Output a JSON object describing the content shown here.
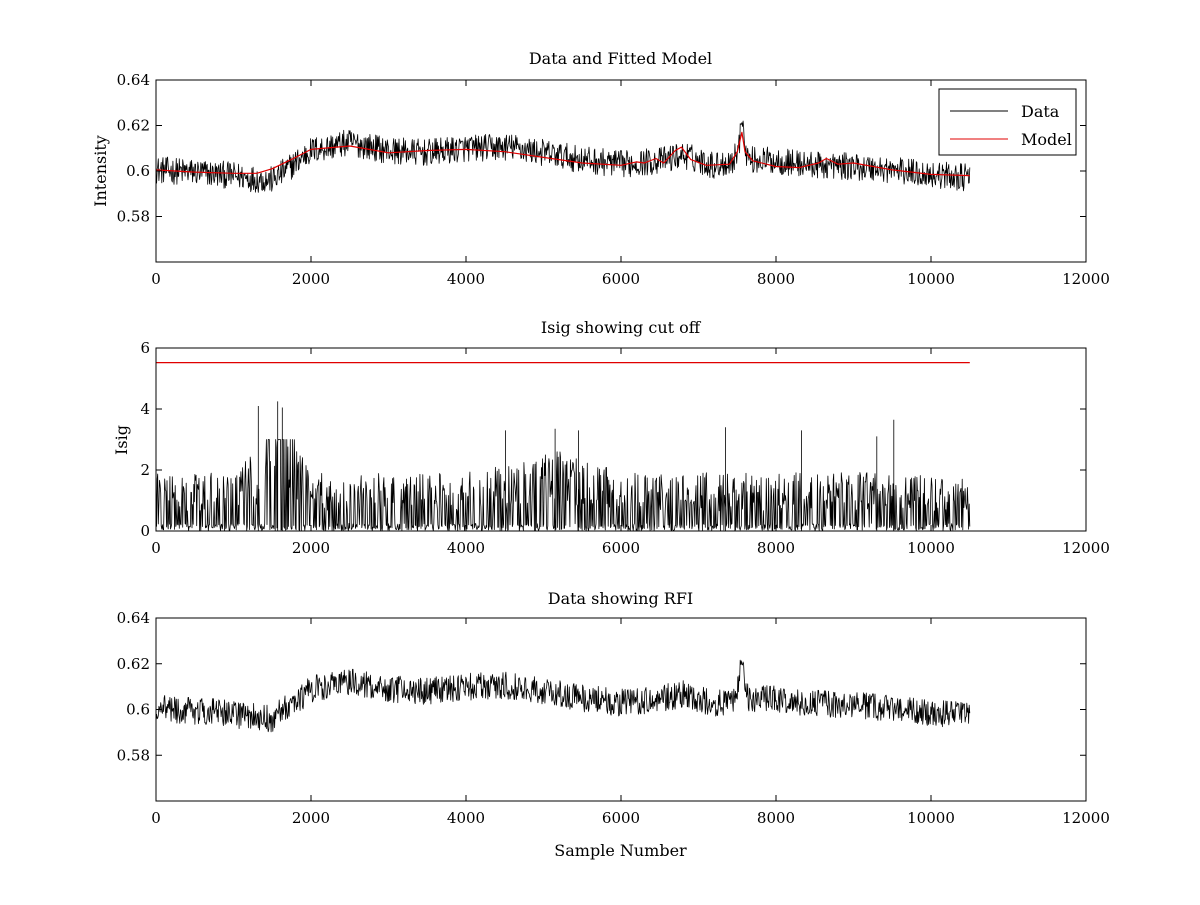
{
  "colors": {
    "data": "#000000",
    "model": "#e00000",
    "background": "#ffffff"
  },
  "chart_data": [
    {
      "type": "line",
      "title": "Data and Fitted Model",
      "xlabel": "",
      "ylabel": "Intensity",
      "xlim": [
        0,
        12000
      ],
      "ylim": [
        0.56,
        0.64
      ],
      "xticks": [
        0,
        2000,
        4000,
        6000,
        8000,
        10000,
        12000
      ],
      "xtick_labels": [
        "0",
        "2000",
        "4000",
        "6000",
        "8000",
        "10000",
        "12000"
      ],
      "yticks": [
        0.58,
        0.6,
        0.62,
        0.64
      ],
      "ytick_labels": [
        "0.58",
        "0.6",
        "0.62",
        "0.64"
      ],
      "grid": false,
      "legend": {
        "position": "top-right",
        "entries": [
          "Data",
          "Model"
        ]
      },
      "series": [
        {
          "name": "Data",
          "color": "#000000",
          "style": "noisy",
          "noise_halfwidth": 0.006,
          "points": [
            [
              0,
              0.6005
            ],
            [
              500,
              0.5995
            ],
            [
              1000,
              0.598
            ],
            [
              1300,
              0.5965
            ],
            [
              1500,
              0.596
            ],
            [
              1700,
              0.601
            ],
            [
              2000,
              0.609
            ],
            [
              2500,
              0.6125
            ],
            [
              3000,
              0.609
            ],
            [
              3500,
              0.608
            ],
            [
              4000,
              0.61
            ],
            [
              4600,
              0.6105
            ],
            [
              5000,
              0.608
            ],
            [
              5500,
              0.605
            ],
            [
              6000,
              0.603
            ],
            [
              6500,
              0.6045
            ],
            [
              6800,
              0.607
            ],
            [
              7200,
              0.6025
            ],
            [
              7450,
              0.6045
            ],
            [
              7560,
              0.6145
            ],
            [
              7650,
              0.605
            ],
            [
              8000,
              0.6045
            ],
            [
              8500,
              0.6025
            ],
            [
              9000,
              0.602
            ],
            [
              9500,
              0.6005
            ],
            [
              10000,
              0.5985
            ],
            [
              10500,
              0.597
            ]
          ],
          "peak": {
            "x": 7560,
            "y": 0.622
          }
        },
        {
          "name": "Model",
          "color": "#e00000",
          "style": "line",
          "points": [
            [
              0,
              0.6005
            ],
            [
              500,
              0.5995
            ],
            [
              1000,
              0.599
            ],
            [
              1300,
              0.599
            ],
            [
              1500,
              0.601
            ],
            [
              1800,
              0.606
            ],
            [
              2000,
              0.6095
            ],
            [
              2500,
              0.611
            ],
            [
              3000,
              0.608
            ],
            [
              3500,
              0.609
            ],
            [
              4000,
              0.6095
            ],
            [
              4500,
              0.6085
            ],
            [
              5000,
              0.606
            ],
            [
              5500,
              0.6035
            ],
            [
              6000,
              0.6025
            ],
            [
              6200,
              0.604
            ],
            [
              6300,
              0.6035
            ],
            [
              6450,
              0.6055
            ],
            [
              6550,
              0.6035
            ],
            [
              6700,
              0.609
            ],
            [
              6780,
              0.6105
            ],
            [
              6900,
              0.605
            ],
            [
              7100,
              0.6025
            ],
            [
              7400,
              0.603
            ],
            [
              7500,
              0.6085
            ],
            [
              7560,
              0.617
            ],
            [
              7600,
              0.6085
            ],
            [
              7700,
              0.6045
            ],
            [
              8000,
              0.602
            ],
            [
              8300,
              0.6015
            ],
            [
              8550,
              0.6035
            ],
            [
              8650,
              0.6055
            ],
            [
              8800,
              0.603
            ],
            [
              9000,
              0.6035
            ],
            [
              9500,
              0.6005
            ],
            [
              10000,
              0.5985
            ],
            [
              10500,
              0.598
            ]
          ]
        }
      ]
    },
    {
      "type": "line",
      "title": "Isig showing cut off",
      "xlabel": "",
      "ylabel": "Isig",
      "xlim": [
        0,
        12000
      ],
      "ylim": [
        0,
        6
      ],
      "xticks": [
        0,
        2000,
        4000,
        6000,
        8000,
        10000,
        12000
      ],
      "xtick_labels": [
        "0",
        "2000",
        "4000",
        "6000",
        "8000",
        "10000",
        "12000"
      ],
      "yticks": [
        0,
        2,
        4,
        6
      ],
      "ytick_labels": [
        "0",
        "2",
        "4",
        "6"
      ],
      "grid": false,
      "series": [
        {
          "color": "#000000",
          "style": "spiky",
          "points": [
            [
              0,
              0.8
            ],
            [
              1000,
              0.8
            ],
            [
              1300,
              1.1
            ],
            [
              1500,
              2.2
            ],
            [
              1650,
              2.3
            ],
            [
              1800,
              1.2
            ],
            [
              2000,
              0.8
            ],
            [
              4000,
              0.8
            ],
            [
              4500,
              0.9
            ],
            [
              5200,
              1.1
            ],
            [
              6000,
              0.8
            ],
            [
              8000,
              0.8
            ],
            [
              10500,
              0.8
            ]
          ],
          "max_spikes": [
            [
              1320,
              4.1
            ],
            [
              1570,
              4.25
            ],
            [
              1630,
              4.05
            ],
            [
              5150,
              3.35
            ],
            [
              5450,
              3.3
            ],
            [
              7350,
              3.4
            ],
            [
              9300,
              3.1
            ],
            [
              9520,
              3.65
            ],
            [
              8330,
              3.3
            ],
            [
              4510,
              3.3
            ]
          ]
        },
        {
          "color": "#e00000",
          "style": "line",
          "points": [
            [
              0,
              5.52
            ],
            [
              10500,
              5.52
            ]
          ]
        }
      ]
    },
    {
      "type": "line",
      "title": "Data showing RFI",
      "xlabel": "Sample Number",
      "ylabel": "",
      "xlim": [
        0,
        12000
      ],
      "ylim": [
        0.56,
        0.64
      ],
      "xticks": [
        0,
        2000,
        4000,
        6000,
        8000,
        10000,
        12000
      ],
      "xtick_labels": [
        "0",
        "2000",
        "4000",
        "6000",
        "8000",
        "10000",
        "12000"
      ],
      "yticks": [
        0.58,
        0.6,
        0.62,
        0.64
      ],
      "ytick_labels": [
        "0.58",
        "0.6",
        "0.62",
        "0.64"
      ],
      "grid": false,
      "series": [
        {
          "color": "#000000",
          "style": "noisy",
          "noise_halfwidth": 0.006,
          "points": [
            [
              0,
              0.6005
            ],
            [
              500,
              0.5995
            ],
            [
              1000,
              0.598
            ],
            [
              1300,
              0.5965
            ],
            [
              1500,
              0.596
            ],
            [
              1700,
              0.601
            ],
            [
              2000,
              0.609
            ],
            [
              2500,
              0.6125
            ],
            [
              3000,
              0.609
            ],
            [
              3500,
              0.608
            ],
            [
              4000,
              0.61
            ],
            [
              4600,
              0.6105
            ],
            [
              5000,
              0.608
            ],
            [
              5500,
              0.605
            ],
            [
              6000,
              0.603
            ],
            [
              6500,
              0.6045
            ],
            [
              6800,
              0.607
            ],
            [
              7200,
              0.6025
            ],
            [
              7450,
              0.6045
            ],
            [
              7560,
              0.6145
            ],
            [
              7650,
              0.605
            ],
            [
              8000,
              0.6045
            ],
            [
              8500,
              0.6025
            ],
            [
              9000,
              0.602
            ],
            [
              9500,
              0.6005
            ],
            [
              10000,
              0.5985
            ],
            [
              10500,
              0.597
            ]
          ],
          "peak": {
            "x": 7560,
            "y": 0.622
          }
        }
      ]
    }
  ]
}
